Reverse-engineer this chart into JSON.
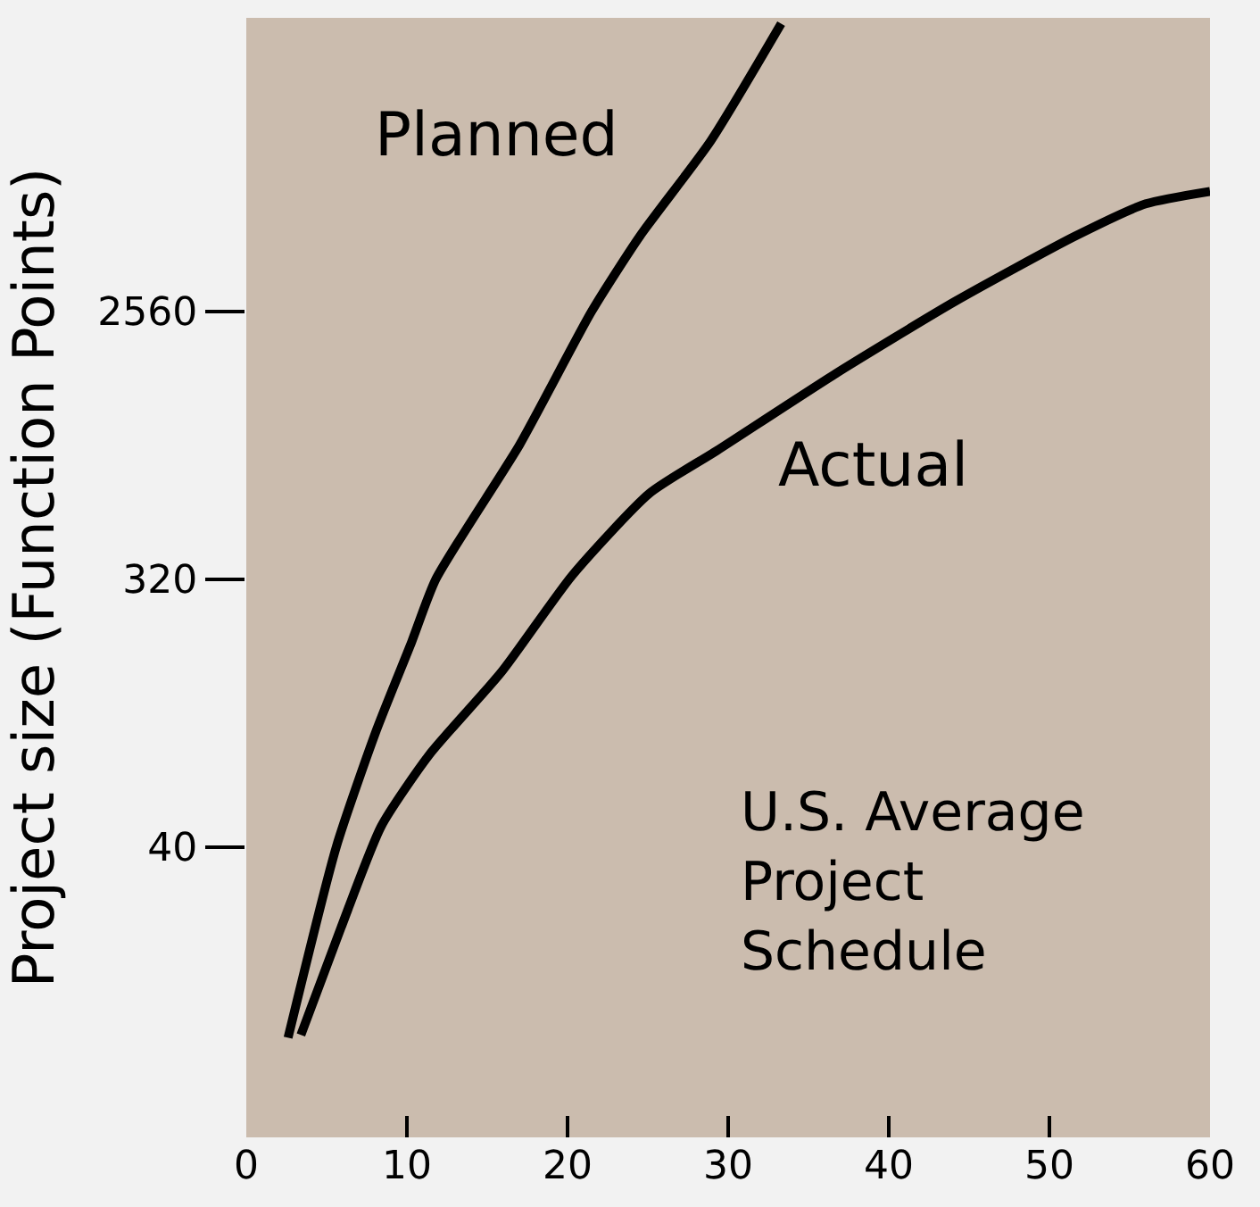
{
  "chart_data": {
    "type": "line",
    "ylabel": "Project size (Function Points)",
    "log": "y",
    "xlim": [
      0,
      60
    ],
    "xticks": [
      0,
      10,
      20,
      30,
      40,
      50,
      60
    ],
    "ylim": [
      4.2,
      25000
    ],
    "yticks": [
      40,
      320,
      2560
    ],
    "grid": false,
    "legend": false,
    "marker": "none",
    "line_style": "solid",
    "series": [
      {
        "name": "Planned",
        "color": "#000000",
        "x": [
          2.6,
          5.6,
          8.1,
          10.3,
          11.8,
          17.0,
          21.5,
          24.5,
          28.9,
          33.3
        ],
        "values": [
          9.1,
          40,
          99,
          197,
          320,
          906,
          2560,
          4590,
          9590,
          23900
        ]
      },
      {
        "name": "Actual",
        "color": "#000000",
        "x": [
          3.4,
          5.9,
          8.4,
          11.4,
          15.9,
          20.3,
          25.1,
          29.3,
          36.7,
          44.1,
          51.6,
          56.0,
          60
        ],
        "values": [
          9.3,
          21.4,
          47,
          82,
          156,
          330,
          623,
          869,
          1580,
          2760,
          4590,
          5900,
          6500
        ]
      }
    ],
    "annotations": [
      "U.S. Average\nProject\nSchedule"
    ]
  }
}
